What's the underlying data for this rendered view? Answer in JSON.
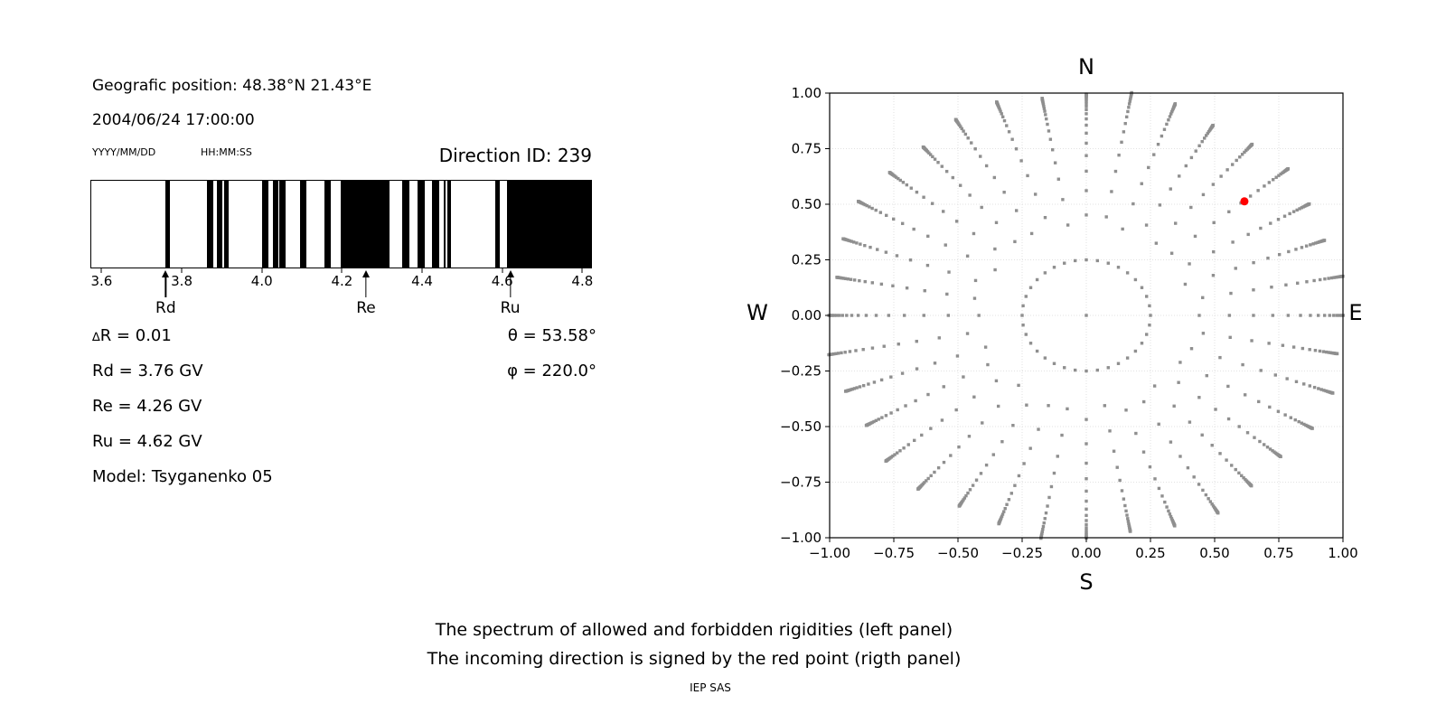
{
  "colors": {
    "band": "#000000",
    "axis": "#000000",
    "grid": "#e2e2e2",
    "dot": "#8f8f8f",
    "red": "#ff0000",
    "text": "#000000"
  },
  "header": {
    "position": "Geografic position: 48.38°N 21.43°E",
    "datetime": "2004/06/24 17:00:00",
    "date_format": "YYYY/MM/DD",
    "time_format": "HH:MM:SS",
    "direction_id": "Direction ID: 239"
  },
  "info": {
    "delta_symbol": "∆",
    "delta_rest": "R = 0.01",
    "rd": "Rd = 3.76 GV",
    "re": "Re = 4.26 GV",
    "ru": "Ru = 4.62 GV",
    "model": "Model: Tsyganenko 05",
    "theta": "θ = 53.58°",
    "phi": "φ = 220.0°"
  },
  "caption": {
    "line1": "The spectrum of allowed and forbidden rigidities (left panel)",
    "line2": "The incoming direction is signed by the red point (rigth panel)",
    "credit": "IEP SAS"
  },
  "chart_data": [
    {
      "type": "bar",
      "panel": "rigidity-spectrum",
      "unit": "GV",
      "x_range": [
        3.572,
        4.824
      ],
      "x_tick_values": [
        3.6,
        3.8,
        4.0,
        4.2,
        4.4,
        4.6,
        4.8
      ],
      "x_tick_labels": [
        "3.6",
        "3.8",
        "4.0",
        "4.2",
        "4.4",
        "4.6",
        "4.8"
      ],
      "forbidden_bands_gv": [
        [
          3.758,
          3.77
        ],
        [
          3.861,
          3.877
        ],
        [
          3.886,
          3.901
        ],
        [
          3.905,
          3.917
        ],
        [
          4.001,
          4.016
        ],
        [
          4.026,
          4.04
        ],
        [
          4.044,
          4.059
        ],
        [
          4.095,
          4.111
        ],
        [
          4.155,
          4.172
        ],
        [
          4.196,
          4.319
        ],
        [
          4.35,
          4.369
        ],
        [
          4.389,
          4.408
        ],
        [
          4.425,
          4.443
        ],
        [
          4.454,
          4.46
        ],
        [
          4.465,
          4.474
        ],
        [
          4.583,
          4.595
        ],
        [
          4.614,
          4.824
        ]
      ],
      "markers": [
        {
          "label": "Rd",
          "value_gv": 3.76
        },
        {
          "label": "Re",
          "value_gv": 4.26
        },
        {
          "label": "Ru",
          "value_gv": 4.62
        }
      ]
    },
    {
      "type": "scatter",
      "panel": "incoming-direction-map",
      "xlim": [
        -1,
        1
      ],
      "ylim": [
        -1,
        1
      ],
      "x_tick_values": [
        -1,
        -0.75,
        -0.5,
        -0.25,
        0,
        0.25,
        0.5,
        0.75,
        1
      ],
      "x_tick_labels": [
        "−1.00",
        "−0.75",
        "−0.50",
        "−0.25",
        "0.00",
        "0.25",
        "0.50",
        "0.75",
        "1.00"
      ],
      "y_tick_values": [
        1,
        0.75,
        0.5,
        0.25,
        0,
        -0.25,
        -0.5,
        -0.75,
        -1
      ],
      "y_tick_labels": [
        "1.00",
        "0.75",
        "0.50",
        "0.25",
        "0.00",
        "−0.25",
        "−0.50",
        "−0.75",
        "−1.00"
      ],
      "grid_tick_values": [
        -0.75,
        -0.5,
        -0.25,
        0,
        0.25,
        0.5,
        0.75
      ],
      "grid": true,
      "compass": {
        "n": "N",
        "s": "S",
        "w": "W",
        "e": "E"
      },
      "center_dot": true,
      "inner_circle": {
        "radius": 0.25,
        "num_dots": 36
      },
      "rays": {
        "count": 36,
        "angle_step_deg": 10,
        "r_start": 0.44,
        "r_start_jitter": 0.03,
        "accum_radius": 1.01,
        "accum_jitter": 0.02,
        "decay": 0.8,
        "dots_per_ray": 24,
        "clip": 1.004
      },
      "red_point": {
        "x": 0.616,
        "y": 0.513
      }
    }
  ]
}
